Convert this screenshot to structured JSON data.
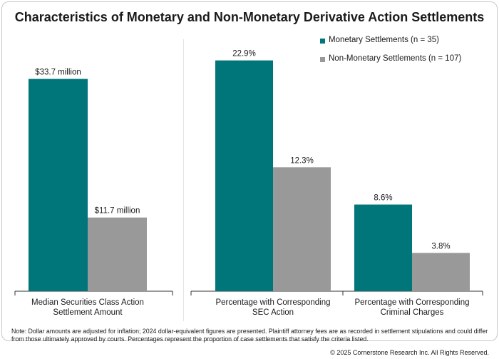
{
  "title": "Characteristics of Monetary and Non-Monetary Derivative Action Settlements",
  "legend": [
    {
      "label": "Monetary Settlements (n = 35)",
      "color": "#00757a"
    },
    {
      "label": "Non-Monetary Settlements (n = 107)",
      "color": "#999999"
    }
  ],
  "chart_data": [
    {
      "type": "bar",
      "categories": [
        "Median Securities Class Action\nSettlement Amount"
      ],
      "series": [
        {
          "name": "Monetary Settlements (n = 35)",
          "values": [
            33.7
          ],
          "labels": [
            "$33.7 million"
          ],
          "color": "#00757a"
        },
        {
          "name": "Non-Monetary Settlements (n = 107)",
          "values": [
            11.7
          ],
          "labels": [
            "$11.7 million"
          ],
          "color": "#999999"
        }
      ],
      "ylim": [
        0,
        40
      ],
      "grid": false
    },
    {
      "type": "bar",
      "categories": [
        "Percentage with Corresponding\nSEC Action",
        "Percentage with Corresponding\nCriminal Charges"
      ],
      "series": [
        {
          "name": "Monetary Settlements (n = 35)",
          "values": [
            22.9,
            8.6
          ],
          "labels": [
            "22.9%",
            "8.6%"
          ],
          "color": "#00757a"
        },
        {
          "name": "Non-Monetary Settlements (n = 107)",
          "values": [
            12.3,
            3.8
          ],
          "labels": [
            "12.3%",
            "3.8%"
          ],
          "color": "#999999"
        }
      ],
      "ylim": [
        0,
        25
      ],
      "grid": false
    }
  ],
  "note": "Note: Dollar amounts are adjusted for inflation; 2024 dollar-equivalent figures are presented. Plaintiff attorney fees are as recorded in settlement stipulations and could differ from those ultimately approved by courts. Percentages represent the proportion of case settlements that satisfy the criteria listed.",
  "copyright": "© 2025 Cornerstone Research Inc. All Rights Reserved."
}
